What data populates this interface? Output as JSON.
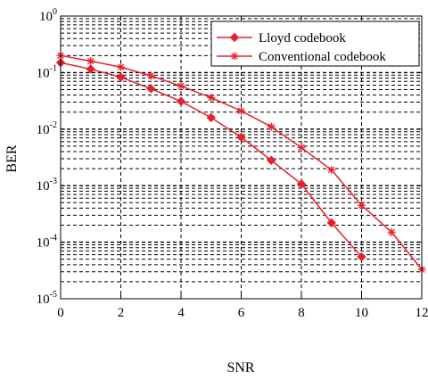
{
  "chart_data": {
    "type": "line",
    "xlabel": "SNR",
    "ylabel": "BER",
    "x_scale": "linear",
    "y_scale": "log",
    "xlim": [
      0,
      12
    ],
    "ylim": [
      1e-05,
      1
    ],
    "grid": true,
    "legend_position": "top-right",
    "x_ticks": [
      "0",
      "2",
      "4",
      "6",
      "8",
      "10",
      "12"
    ],
    "y_ticks": [
      {
        "base": "10",
        "exp": "-5"
      },
      {
        "base": "10",
        "exp": "-4"
      },
      {
        "base": "10",
        "exp": "-3"
      },
      {
        "base": "10",
        "exp": "-2"
      },
      {
        "base": "10",
        "exp": "-1"
      },
      {
        "base": "10",
        "exp": "0"
      }
    ],
    "series": [
      {
        "name": "Lloyd codebook",
        "marker": "diamond",
        "color": "#e8202a",
        "x": [
          0,
          1,
          2,
          3,
          4,
          5,
          6,
          7,
          8,
          9,
          10
        ],
        "y": [
          0.15,
          0.115,
          0.083,
          0.052,
          0.031,
          0.016,
          0.0072,
          0.0028,
          0.00107,
          0.00022,
          5.5e-05
        ]
      },
      {
        "name": "Conventional codebook",
        "marker": "star",
        "color": "#e8202a",
        "x": [
          0,
          1,
          2,
          3,
          4,
          5,
          6,
          7,
          8,
          9,
          10,
          11,
          12
        ],
        "y": [
          0.2,
          0.16,
          0.125,
          0.088,
          0.058,
          0.036,
          0.021,
          0.011,
          0.0047,
          0.0019,
          0.00045,
          0.00015,
          3.3e-05
        ]
      }
    ]
  }
}
